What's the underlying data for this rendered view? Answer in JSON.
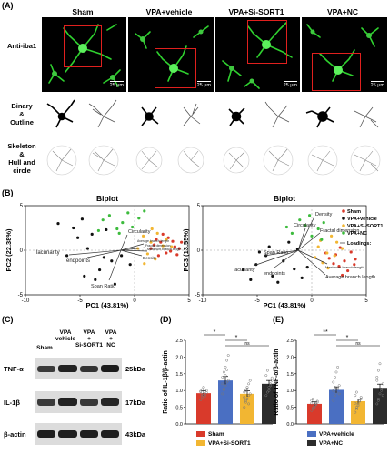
{
  "panel_labels": {
    "A": "(A)",
    "B": "(B)",
    "C": "(C)",
    "D": "(D)",
    "E": "(E)"
  },
  "panel_a": {
    "groups": [
      "Sham",
      "VPA+vehicle",
      "VPA+Si-SORT1",
      "VPA+NC"
    ],
    "rows": {
      "stain": "Anti-iba1",
      "binary": "Binary\n&\nOutline",
      "skeleton": "Skeleton\n&\nHull and circle"
    },
    "scale_bar": "25 μm"
  },
  "biplot_left": {
    "title": "Biplot",
    "xlabel": "PC1 (43.81%)",
    "ylabel": "PC2 (22.38%)",
    "loadings": [
      "Circularity",
      "lacunarity",
      "endpoints",
      "Span Ratio",
      "Average branch length",
      "Fractal dimension",
      "Maximum branch length",
      "Density"
    ]
  },
  "biplot_right": {
    "title": "Biplot",
    "xlabel": "PC1 (43.81%)",
    "ylabel": "PC3 (13.55%)",
    "loadings": [
      "Density",
      "Circularity",
      "Fractal dimension",
      "Span Ratio",
      "lacunarity",
      "endpoints",
      "Maximum branch length",
      "Average branch length"
    ],
    "legend": [
      "Sham",
      "VPA+vehicle",
      "VPA+Si-SORT1",
      "VPA+NC"
    ],
    "loadings_label": "Loadings:"
  },
  "western": {
    "lanes": [
      "Sham",
      "VPA\nvehicle",
      "VPA\n+\nSi-SORT1",
      "VPA\n+\nNC"
    ],
    "proteins": [
      {
        "name": "TNF-α",
        "size": "25kDa"
      },
      {
        "name": "IL-1β",
        "size": "17kDa"
      },
      {
        "name": "β-actin",
        "size": "43kDa"
      }
    ]
  },
  "colors": {
    "sham": "#d93a2b",
    "vehicle": "#4a6fc2",
    "sisort1": "#f2b632",
    "nc": "#2c2c2c",
    "green": "#3dbb3d",
    "red": "#e0201e"
  },
  "chart_data": [
    {
      "type": "scatter",
      "title": "Biplot",
      "xlabel": "PC1 (43.81%)",
      "ylabel": "PC2 (22.38%)",
      "xlim": [
        -10,
        5
      ],
      "ylim": [
        -5,
        5
      ],
      "x_ticks": [
        -10,
        -5,
        0,
        5
      ],
      "y_ticks": [
        -5,
        0,
        5
      ],
      "series": [
        {
          "name": "Sham",
          "color": "#d93a2b",
          "x": [
            2.4,
            3.1,
            3.7,
            2.9,
            1.8,
            3.5,
            4.1,
            2.2,
            3.3,
            2.6,
            1.5,
            3.9,
            2.0,
            4.3
          ],
          "y": [
            0.9,
            1.4,
            0.4,
            -0.3,
            0.6,
            1.0,
            0.2,
            -0.6,
            -0.1,
            1.8,
            0.2,
            -0.5,
            1.2,
            0.9
          ]
        },
        {
          "name": "VPA+vehicle",
          "color": "#111111",
          "x": [
            -7.0,
            -5.6,
            -4.8,
            -3.9,
            -4.3,
            -2.8,
            -6.2,
            -3.2,
            -2.1,
            -4.6,
            -1.2,
            -3.6,
            -5.2,
            -0.4,
            -2.6,
            -1.8
          ],
          "y": [
            3.0,
            2.5,
            3.5,
            1.8,
            0.2,
            -0.8,
            -0.6,
            -2.2,
            -1.2,
            -2.9,
            -0.6,
            -3.3,
            1.4,
            -1.6,
            2.3,
            -3.8
          ]
        },
        {
          "name": "VPA+Si-SORT1",
          "color": "#f2b632",
          "x": [
            0.8,
            1.5,
            2.1,
            1.2,
            2.6,
            0.3,
            1.9,
            2.9,
            0.9,
            1.6,
            3.4
          ],
          "y": [
            1.6,
            0.9,
            1.9,
            -0.4,
            0.5,
            0.2,
            -1.0,
            1.2,
            -1.5,
            2.4,
            0.4
          ]
        },
        {
          "name": "VPA+NC",
          "color": "#3dbb3d",
          "x": [
            -2.3,
            -1.1,
            -0.6,
            0.4,
            -1.6,
            -2.9,
            -0.2,
            0.9,
            -3.3,
            -1.4
          ],
          "y": [
            3.9,
            3.1,
            4.2,
            3.6,
            2.4,
            3.4,
            2.6,
            4.4,
            2.2,
            1.9
          ]
        }
      ]
    },
    {
      "type": "scatter",
      "title": "Biplot",
      "xlabel": "PC1 (43.81%)",
      "ylabel": "PC3 (13.55%)",
      "xlim": [
        -10,
        5
      ],
      "ylim": [
        -5,
        5
      ],
      "x_ticks": [
        -10,
        -5,
        0,
        5
      ],
      "y_ticks": [
        -5,
        0,
        5
      ],
      "legend_position": "top-right",
      "series": [
        {
          "name": "Sham",
          "color": "#d93a2b",
          "x": [
            2.2,
            3.0,
            3.6,
            2.5,
            1.6,
            3.3,
            4.0,
            2.0,
            2.8,
            3.9,
            1.3,
            2.6
          ],
          "y": [
            -0.5,
            -1.2,
            -0.2,
            -1.8,
            -0.9,
            -2.3,
            -1.0,
            -1.5,
            -2.8,
            -1.6,
            -0.3,
            0.3
          ]
        },
        {
          "name": "VPA+vehicle",
          "color": "#111111",
          "x": [
            -6.3,
            -5.1,
            -4.2,
            -3.6,
            -2.6,
            -3.1,
            -1.6,
            -4.8,
            -2.1,
            -0.9,
            -3.9,
            -1.3,
            -0.4,
            -5.6
          ],
          "y": [
            -2.2,
            -1.6,
            -0.6,
            -2.9,
            -1.2,
            -3.6,
            -2.1,
            -0.2,
            0.9,
            -3.1,
            0.4,
            0.1,
            -1.9,
            -3.3
          ]
        },
        {
          "name": "VPA+Si-SORT1",
          "color": "#f2b632",
          "x": [
            0.6,
            1.4,
            2.3,
            1.0,
            2.8,
            0.3,
            1.8,
            0.8,
            2.1,
            1.5
          ],
          "y": [
            0.4,
            -0.3,
            0.9,
            -1.4,
            0.2,
            -0.8,
            1.6,
            1.1,
            -0.6,
            -2.0
          ]
        },
        {
          "name": "VPA+NC",
          "color": "#3dbb3d",
          "x": [
            -1.8,
            -0.6,
            0.6,
            -1.1,
            0.0,
            -2.3,
            1.1,
            -0.2,
            0.9
          ],
          "y": [
            1.9,
            2.8,
            2.4,
            3.4,
            1.6,
            2.6,
            3.1,
            3.9,
            1.2
          ]
        }
      ]
    },
    {
      "type": "bar",
      "ylabel": "Ratio of IL-1β/β-actin",
      "ylim": [
        0,
        2.5
      ],
      "y_ticks": [
        0,
        0.5,
        1.0,
        1.5,
        2.0,
        2.5
      ],
      "categories": [
        "Sham",
        "VPA+vehicle",
        "VPA+Si-SORT1",
        "VPA+NC"
      ],
      "legend": [
        "Sham",
        "VPA+Si-SORT1"
      ],
      "values": [
        0.92,
        1.3,
        0.9,
        1.2
      ],
      "errors": [
        0.07,
        0.12,
        0.09,
        0.1
      ],
      "points": [
        [
          0.72,
          0.8,
          0.86,
          0.9,
          0.94,
          0.98,
          1.03,
          1.1,
          0.84,
          1.0,
          0.96,
          0.88
        ],
        [
          0.9,
          1.05,
          1.15,
          1.25,
          1.3,
          1.4,
          1.55,
          1.7,
          1.9,
          2.05,
          1.2,
          1.02,
          1.45,
          1.62
        ],
        [
          0.5,
          0.65,
          0.75,
          0.85,
          0.9,
          0.95,
          1.0,
          1.1,
          1.2,
          1.3,
          0.8,
          0.7,
          1.05,
          0.6
        ],
        [
          0.85,
          0.95,
          1.1,
          1.2,
          1.3,
          1.45,
          1.6,
          1.0,
          1.15,
          1.38
        ]
      ],
      "significance": [
        {
          "from": 0,
          "to": 1,
          "label": "*"
        },
        {
          "from": 1,
          "to": 2,
          "label": "*"
        },
        {
          "from": 1,
          "to": 3,
          "label": "ns"
        }
      ]
    },
    {
      "type": "bar",
      "ylabel": "Ratio of TNF-α/β-actin",
      "ylim": [
        0,
        2.5
      ],
      "y_ticks": [
        0,
        0.5,
        1.0,
        1.5,
        2.0,
        2.5
      ],
      "categories": [
        "Sham",
        "VPA+vehicle",
        "VPA+Si-SORT1",
        "VPA+NC"
      ],
      "legend": [
        "VPA+vehicle",
        "VPA+NC"
      ],
      "values": [
        0.6,
        1.02,
        0.68,
        1.08
      ],
      "errors": [
        0.06,
        0.09,
        0.07,
        0.11
      ],
      "points": [
        [
          0.4,
          0.48,
          0.54,
          0.6,
          0.65,
          0.7,
          0.75,
          0.5,
          0.58,
          0.68,
          0.62,
          0.44
        ],
        [
          0.7,
          0.85,
          0.95,
          1.05,
          1.15,
          1.25,
          1.4,
          1.55,
          1.7,
          0.9,
          1.0,
          1.1
        ],
        [
          0.35,
          0.5,
          0.6,
          0.68,
          0.75,
          0.85,
          0.95,
          0.55,
          0.7,
          0.8,
          0.62,
          0.45
        ],
        [
          0.6,
          0.75,
          0.9,
          1.05,
          1.2,
          1.4,
          1.6,
          1.8,
          1.0,
          0.85,
          1.3,
          0.7
        ]
      ],
      "significance": [
        {
          "from": 0,
          "to": 1,
          "label": "**"
        },
        {
          "from": 1,
          "to": 2,
          "label": "*"
        },
        {
          "from": 1,
          "to": 3,
          "label": "ns"
        }
      ]
    }
  ]
}
